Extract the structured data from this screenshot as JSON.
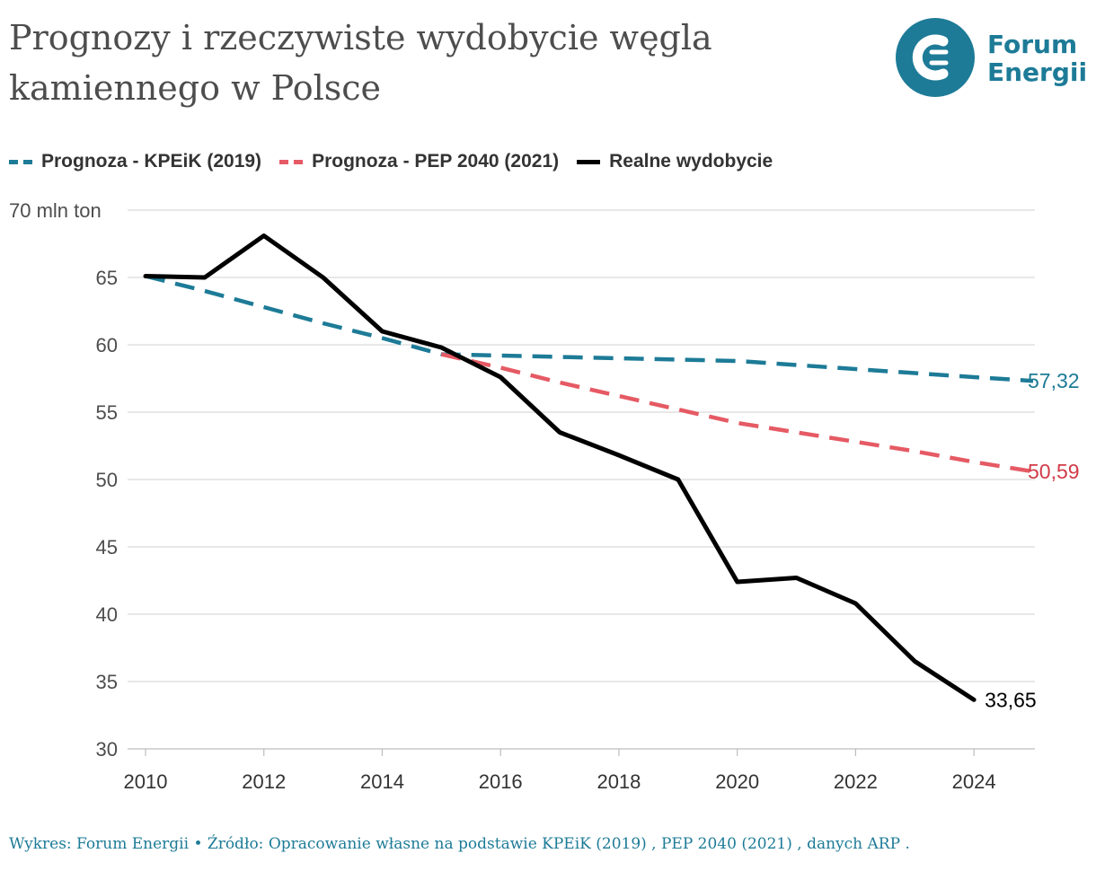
{
  "header": {
    "title": "Prognozy i rzeczywiste wydobycie węgla kamiennego w Polsce",
    "logo_line1": "Forum",
    "logo_line2": "Energii"
  },
  "footer": {
    "text": "Wykres: Forum Energii • Źródło: Opracowanie własne na podstawie KPEiK (2019) , PEP 2040 (2021) , danych ARP ."
  },
  "colors": {
    "kpeik": "#1d7b97",
    "pep": "#e55a64",
    "actual": "#000000",
    "pep_label": "#d13b48",
    "grid": "#d9d9d9",
    "axis_text": "#4d4d4d"
  },
  "chart_data": {
    "type": "line",
    "title": "Prognozy i rzeczywiste wydobycie węgla kamiennego w Polsce",
    "xlabel": "",
    "ylabel": "70 mln ton",
    "xlim": [
      2010,
      2025
    ],
    "ylim": [
      30,
      70
    ],
    "x_ticks": [
      "2010",
      "2012",
      "2014",
      "2016",
      "2018",
      "2020",
      "2022",
      "2024"
    ],
    "y_ticks": [
      "30",
      "35",
      "40",
      "45",
      "50",
      "55",
      "60",
      "65",
      "70 mln ton"
    ],
    "grid": true,
    "legend_position": "top-left",
    "series": [
      {
        "key": "kpeik",
        "name": "Prognoza - KPEiK (2019)",
        "style": "dashed",
        "x": [
          2010,
          2011,
          2012,
          2013,
          2014,
          2015,
          2016,
          2017,
          2018,
          2019,
          2020,
          2021,
          2022,
          2023,
          2024,
          2025
        ],
        "values": [
          65.1,
          64.0,
          62.8,
          61.6,
          60.5,
          59.3,
          59.2,
          59.1,
          59.0,
          58.9,
          58.8,
          58.5,
          58.2,
          57.9,
          57.6,
          57.32
        ],
        "end_label": "57,32"
      },
      {
        "key": "pep",
        "name": "Prognoza - PEP 2040 (2021)",
        "style": "dashed",
        "x": [
          2015,
          2016,
          2017,
          2018,
          2019,
          2020,
          2021,
          2022,
          2023,
          2024,
          2025
        ],
        "values": [
          59.3,
          58.3,
          57.2,
          56.2,
          55.2,
          54.2,
          53.5,
          52.8,
          52.1,
          51.3,
          50.59
        ],
        "end_label": "50,59"
      },
      {
        "key": "actual",
        "name": "Realne wydobycie",
        "style": "solid",
        "x": [
          2010,
          2011,
          2012,
          2013,
          2014,
          2015,
          2016,
          2017,
          2018,
          2019,
          2020,
          2021,
          2022,
          2023,
          2024
        ],
        "values": [
          65.1,
          65.0,
          68.1,
          65.0,
          61.0,
          59.8,
          57.6,
          53.5,
          51.8,
          50.0,
          42.4,
          42.7,
          40.8,
          36.5,
          33.65
        ],
        "end_label": "33,65"
      }
    ]
  }
}
